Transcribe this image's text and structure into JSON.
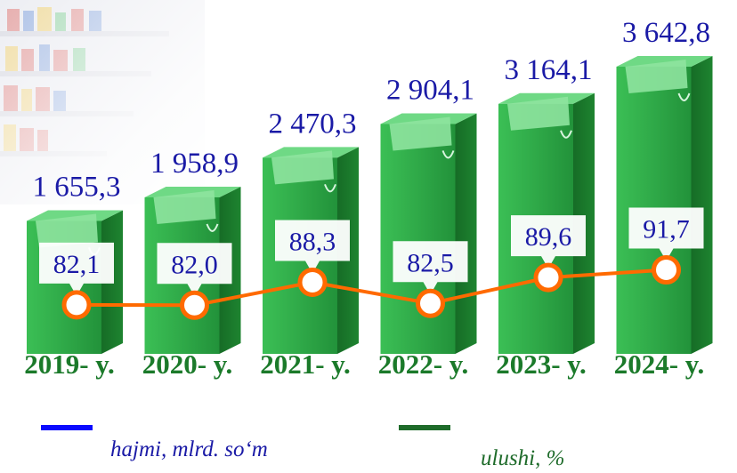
{
  "chart_data": {
    "type": "bar",
    "categories": [
      "2019- y.",
      "2020- y.",
      "2021- y.",
      "2022- y.",
      "2023- y.",
      "2024- y."
    ],
    "series": [
      {
        "name": "hajmi, mlrd. so‘m",
        "values": [
          1655.3,
          1958.9,
          2470.3,
          2904.1,
          3164.1,
          3642.8
        ],
        "labels": [
          "1 655,3",
          "1 958,9",
          "2 470,3",
          "2 904,1",
          "3 164,1",
          "3 642,8"
        ]
      },
      {
        "name": "ulushi, %",
        "values": [
          82.1,
          82.0,
          88.3,
          82.5,
          89.6,
          91.7
        ],
        "labels": [
          "82,1",
          "82,0",
          "88,3",
          "82,5",
          "89,6",
          "91,7"
        ]
      }
    ],
    "colors": {
      "volume": "#0a0aff",
      "share": "#1e6b2a",
      "bars": "#27a844",
      "line": "#ff6a00"
    }
  },
  "legend": {
    "volume_label": "hajmi, mlrd. so‘m",
    "share_label": "ulushi, %"
  }
}
